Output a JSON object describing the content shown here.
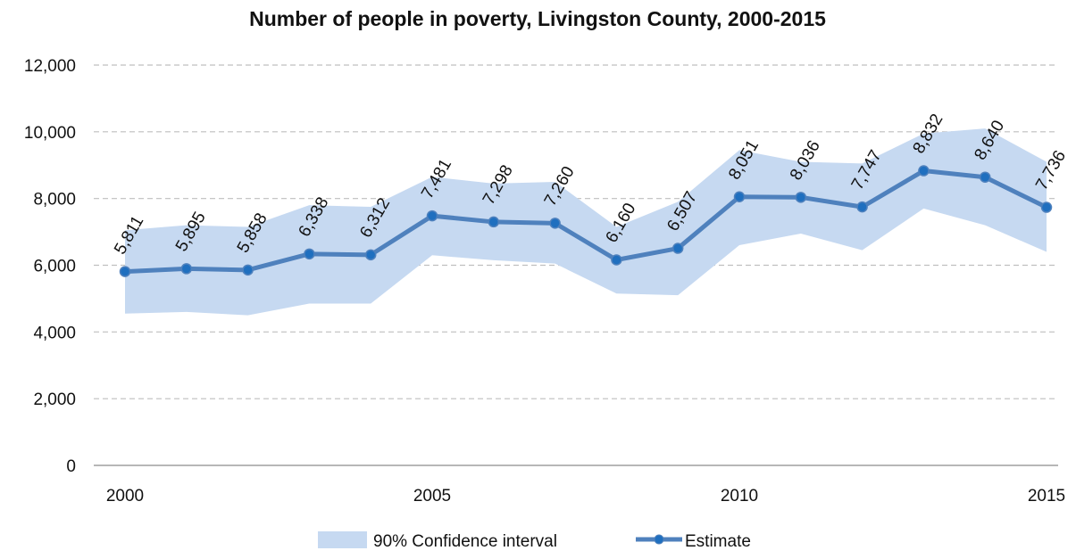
{
  "chart_data": {
    "type": "line",
    "title": "Number of people in poverty, Livingston County, 2000-2015",
    "x": [
      2000,
      2001,
      2002,
      2003,
      2004,
      2005,
      2006,
      2007,
      2008,
      2009,
      2010,
      2011,
      2012,
      2013,
      2014,
      2015
    ],
    "x_tick_labels": [
      "2000",
      "2005",
      "2010",
      "2015"
    ],
    "y_tick_labels": [
      "0",
      "2,000",
      "4,000",
      "6,000",
      "8,000",
      "10,000",
      "12,000"
    ],
    "ylim": [
      0,
      12000
    ],
    "grid": true,
    "legend_position": "bottom",
    "series": [
      {
        "name": "90% Confidence interval",
        "type": "area",
        "color": "#c6d9f1",
        "lower": [
          4550,
          4600,
          4500,
          4850,
          4850,
          6300,
          6150,
          6050,
          5150,
          5100,
          6600,
          6950,
          6450,
          7700,
          7200,
          6400
        ],
        "upper": [
          7050,
          7200,
          7150,
          7800,
          7750,
          8650,
          8450,
          8500,
          7150,
          7900,
          9450,
          9100,
          9050,
          9950,
          10100,
          9100
        ]
      },
      {
        "name": "Estimate",
        "type": "line",
        "color": "#4f81bd",
        "marker_color": "#1f6fbf",
        "values": [
          5811,
          5895,
          5858,
          6338,
          6312,
          7481,
          7298,
          7260,
          6160,
          6507,
          8051,
          8036,
          7747,
          8832,
          8640,
          7736
        ],
        "data_labels": [
          "5,811",
          "5,895",
          "5,858",
          "6,338",
          "6,312",
          "7,481",
          "7,298",
          "7,260",
          "6,160",
          "6,507",
          "8,051",
          "8,036",
          "7,747",
          "8,832",
          "8,640",
          "7,736"
        ]
      }
    ]
  }
}
